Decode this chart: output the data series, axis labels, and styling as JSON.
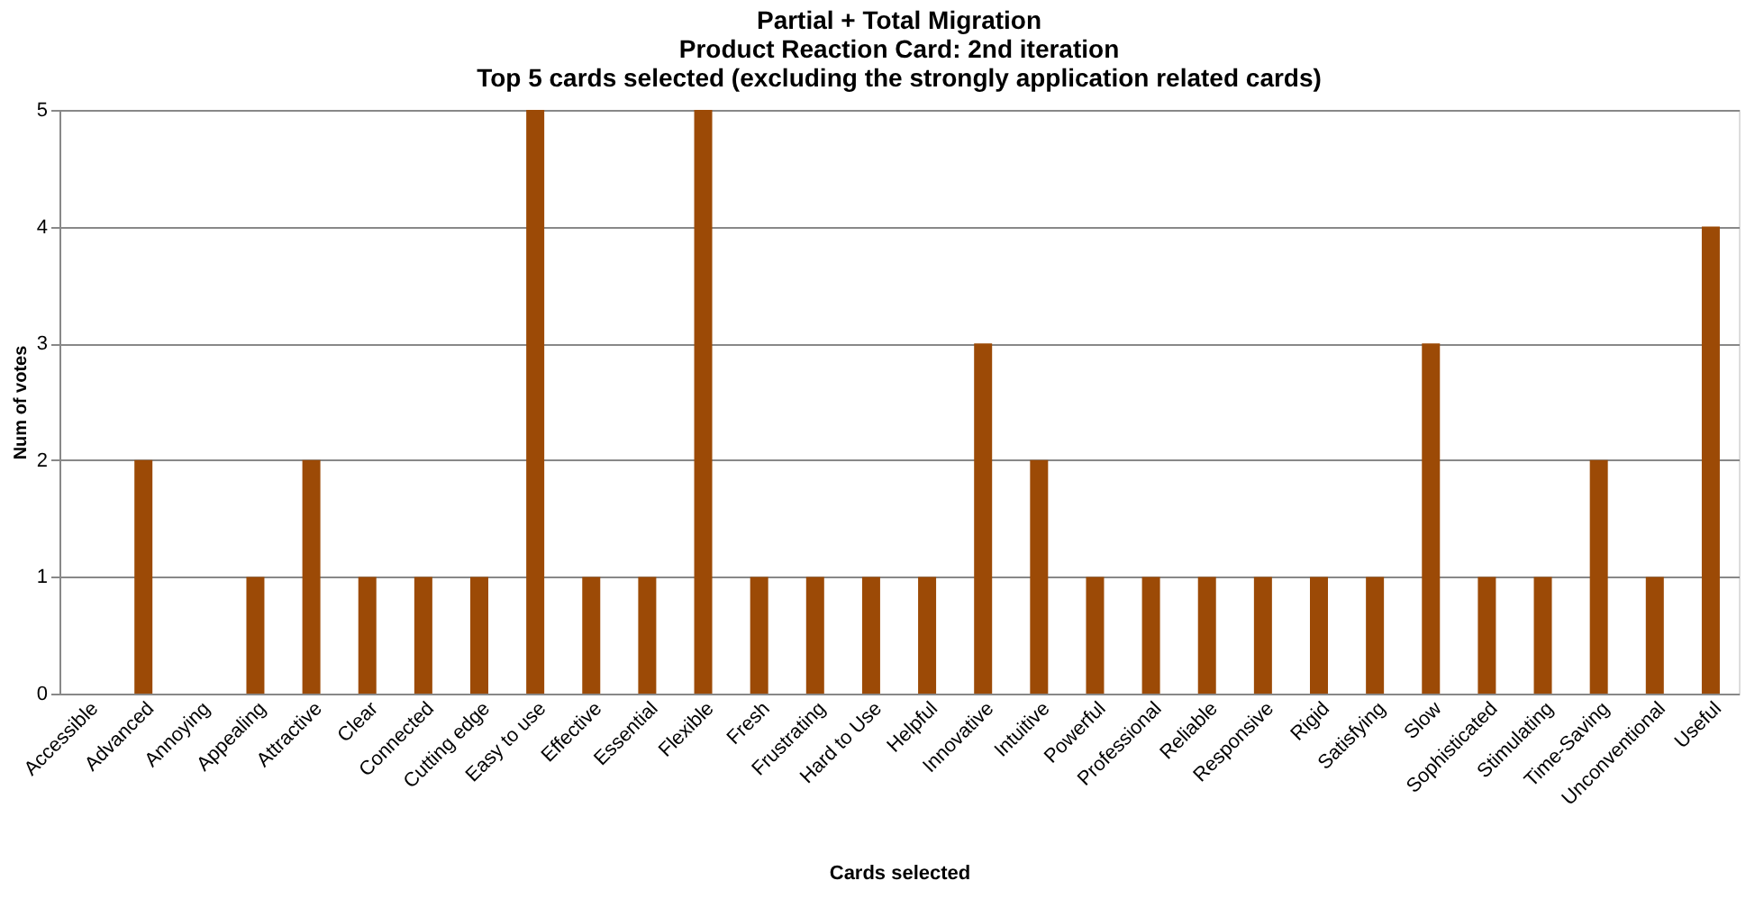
{
  "chart_data": {
    "type": "bar",
    "title": [
      "Partial + Total Migration",
      "Product Reaction Card: 2nd iteration",
      "Top 5 cards selected (excluding the strongly application related cards)"
    ],
    "xlabel": "Cards selected",
    "ylabel": "Num of votes",
    "categories": [
      "Accessible",
      "Advanced",
      "Annoying",
      "Appealing",
      "Attractive",
      "Clear",
      "Connected",
      "Cutting edge",
      "Easy to use",
      "Effective",
      "Essential",
      "Flexible",
      "Fresh",
      "Frustrating",
      "Hard to Use",
      "Helpful",
      "Innovative",
      "Intuitive",
      "Powerful",
      "Professional",
      "Reliable",
      "Responsive",
      "Rigid",
      "Satisfying",
      "Slow",
      "Sophisticated",
      "Stimulating",
      "Time-Saving",
      "Unconventional",
      "Useful"
    ],
    "values": [
      0,
      2,
      0,
      1,
      2,
      1,
      1,
      1,
      5,
      1,
      1,
      5,
      1,
      1,
      1,
      1,
      3,
      2,
      1,
      1,
      1,
      1,
      1,
      1,
      3,
      1,
      1,
      2,
      1,
      4
    ],
    "color": "#9c4a06",
    "ylim": [
      0,
      5
    ],
    "yticks": [
      0,
      1,
      2,
      3,
      4,
      5
    ],
    "grid": "y"
  }
}
